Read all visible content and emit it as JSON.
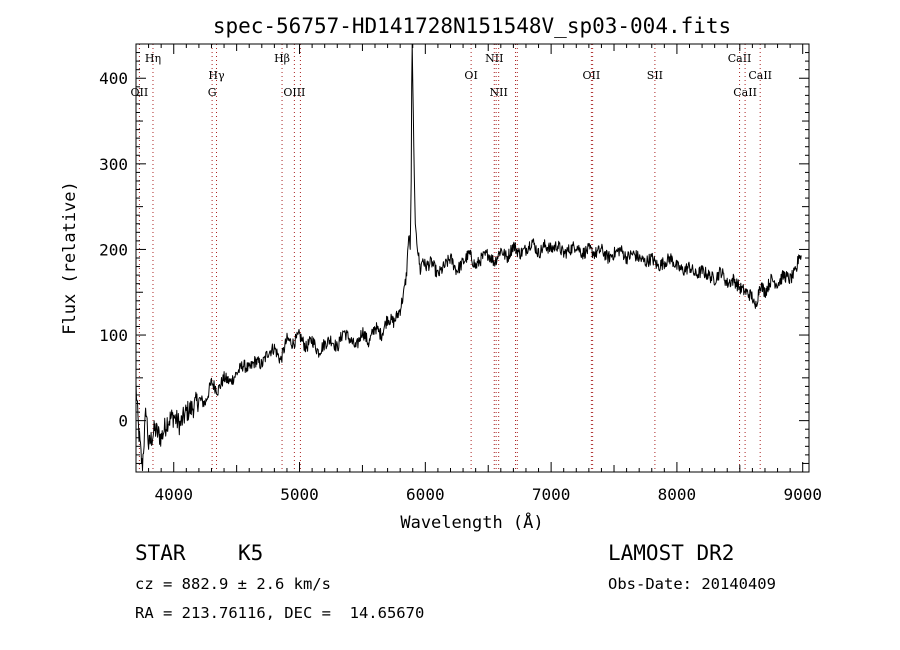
{
  "chart_data": {
    "type": "line",
    "title": "spec-56757-HD141728N151548V_sp03-004.fits",
    "xlabel": "Wavelength (Å)",
    "ylabel": "Flux (relative)",
    "xlim": [
      3700,
      9050
    ],
    "ylim": [
      -60,
      440
    ],
    "xticks": [
      4000,
      5000,
      6000,
      7000,
      8000,
      9000
    ],
    "yticks": [
      0,
      100,
      200,
      300,
      400
    ],
    "grid": false,
    "legend": "none",
    "line_color": "#000000",
    "marker_color": "#aa2222",
    "series": [
      {
        "x": [
          3700,
          3720,
          3750,
          3780,
          3800,
          3850,
          3900,
          3950,
          4000,
          4050,
          4100,
          4150,
          4200,
          4250,
          4300,
          4350,
          4400,
          4450,
          4500,
          4550,
          4600,
          4650,
          4700,
          4750,
          4800,
          4850,
          4900,
          4950,
          5000,
          5050,
          5100,
          5150,
          5200,
          5250,
          5300,
          5350,
          5400,
          5450,
          5500,
          5550,
          5600,
          5650,
          5700,
          5750,
          5800,
          5830,
          5850,
          5870,
          5880,
          5890,
          5893,
          5896,
          5900,
          5910,
          5920,
          5940,
          5960,
          5980,
          6000,
          6050,
          6100,
          6150,
          6200,
          6250,
          6300,
          6350,
          6400,
          6450,
          6500,
          6550,
          6600,
          6650,
          6700,
          6750,
          6800,
          6850,
          6900,
          6950,
          7000,
          7050,
          7100,
          7150,
          7200,
          7250,
          7300,
          7350,
          7400,
          7450,
          7500,
          7550,
          7600,
          7650,
          7700,
          7750,
          7800,
          7850,
          7900,
          7950,
          8000,
          8050,
          8100,
          8150,
          8200,
          8250,
          8300,
          8350,
          8400,
          8450,
          8500,
          8550,
          8600,
          8620,
          8650,
          8660,
          8700,
          8750,
          8800,
          8850,
          8900,
          8950,
          8970,
          8990
        ],
        "y": [
          40,
          -10,
          -55,
          15,
          -30,
          -10,
          -20,
          0,
          5,
          -5,
          10,
          15,
          25,
          20,
          45,
          35,
          50,
          45,
          55,
          65,
          60,
          70,
          65,
          80,
          85,
          70,
          95,
          90,
          100,
          85,
          95,
          80,
          90,
          95,
          85,
          105,
          95,
          85,
          105,
          90,
          110,
          100,
          120,
          115,
          130,
          150,
          170,
          220,
          200,
          300,
          440,
          440,
          400,
          300,
          230,
          200,
          175,
          190,
          180,
          185,
          170,
          180,
          190,
          175,
          185,
          195,
          180,
          190,
          195,
          185,
          200,
          190,
          205,
          195,
          200,
          210,
          195,
          205,
          200,
          205,
          195,
          200,
          205,
          195,
          200,
          195,
          200,
          190,
          195,
          200,
          190,
          195,
          190,
          185,
          190,
          180,
          185,
          190,
          180,
          175,
          180,
          170,
          175,
          170,
          165,
          175,
          160,
          165,
          155,
          150,
          145,
          130,
          150,
          160,
          150,
          165,
          160,
          170,
          165,
          175,
          195,
          190
        ]
      }
    ],
    "line_markers": [
      {
        "wl": 3727,
        "label": "OII",
        "row": 3
      },
      {
        "wl": 3835,
        "label": "Hη",
        "row": 1
      },
      {
        "wl": 4305,
        "label": "G",
        "row": 3
      },
      {
        "wl": 4340,
        "label": "Hγ",
        "row": 2
      },
      {
        "wl": 4861,
        "label": "Hβ",
        "row": 1
      },
      {
        "wl": 4959,
        "label": "OIII",
        "row": 3
      },
      {
        "wl": 5007,
        "label": "",
        "row": 0
      },
      {
        "wl": 6364,
        "label": "OI",
        "row": 2
      },
      {
        "wl": 6548,
        "label": "NII",
        "row": 1
      },
      {
        "wl": 6563,
        "label": "",
        "row": 0
      },
      {
        "wl": 6583,
        "label": "NII",
        "row": 3
      },
      {
        "wl": 7320,
        "label": "OII",
        "row": 2
      },
      {
        "wl": 7330,
        "label": "",
        "row": 0
      },
      {
        "wl": 6717,
        "label": "",
        "row": 0
      },
      {
        "wl": 6731,
        "label": "",
        "row": 0
      },
      {
        "wl": 7825,
        "label": "SII",
        "row": 2
      },
      {
        "wl": 8498,
        "label": "CaII",
        "row": 1
      },
      {
        "wl": 8542,
        "label": "CaII",
        "row": 3
      },
      {
        "wl": 8662,
        "label": "CaII",
        "row": 2
      }
    ]
  },
  "info": {
    "object_class": "STAR",
    "subclass": "K5",
    "survey": "LAMOST DR2",
    "cz": "cz = 882.9 ± 2.6 km/s",
    "obs_date": "Obs-Date: 20140409",
    "coords": "RA = 213.76116, DEC =  14.65670"
  }
}
